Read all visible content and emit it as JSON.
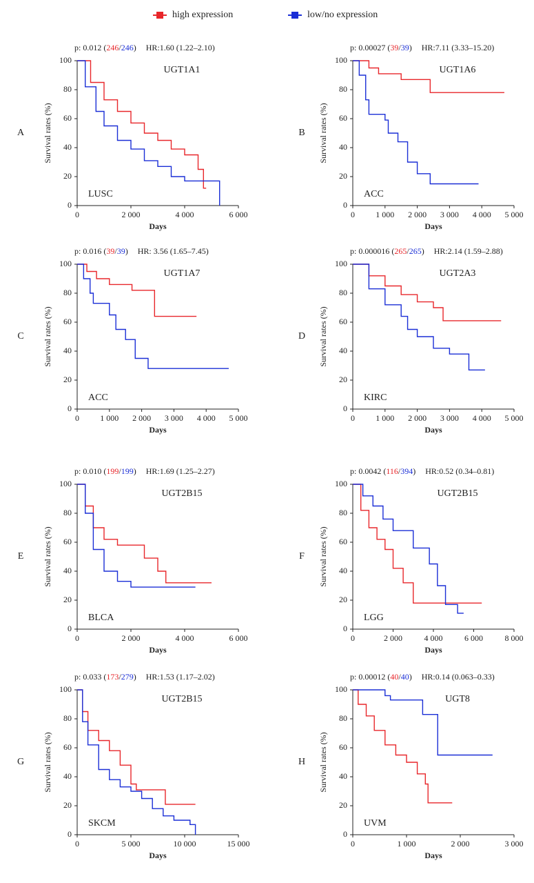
{
  "chart_data": [
    {
      "type": "line",
      "step": "post",
      "panel": "A",
      "gene": "UGT1A1",
      "cancer": "LUSC",
      "annotation": [
        {
          "text": "p: 0.012 ("
        },
        {
          "text": "246",
          "color": "#e8262a"
        },
        {
          "text": "/"
        },
        {
          "text": "246",
          "color": "#1a2ed6"
        },
        {
          "text": ")"
        }
      ],
      "hr": "HR:1.60 (1.22–2.10)",
      "xlabel": "Days",
      "ylabel": "Survival rates (%)",
      "xlim": [
        0,
        6000
      ],
      "xticks": [
        0,
        {
          "value": 2000,
          "label": "2 000"
        },
        {
          "value": 4000,
          "label": "4 000"
        },
        {
          "value": 6000,
          "label": "6 000"
        }
      ],
      "ylim": [
        0,
        100
      ],
      "yticks": [
        0,
        20,
        40,
        60,
        80,
        100
      ],
      "series": [
        {
          "name": "high expression",
          "color": "#e8262a",
          "x": [
            0,
            500,
            1000,
            1500,
            2000,
            2500,
            3000,
            3500,
            4000,
            4500,
            4700,
            4800
          ],
          "values": [
            100,
            85,
            73,
            65,
            57,
            50,
            45,
            39,
            35,
            25,
            12,
            12
          ]
        },
        {
          "name": "low/no expression",
          "color": "#1a2ed6",
          "x": [
            0,
            300,
            700,
            1000,
            1500,
            2000,
            2500,
            3000,
            3500,
            4000,
            5300
          ],
          "values": [
            100,
            82,
            65,
            55,
            45,
            39,
            31,
            27,
            20,
            17,
            0
          ]
        }
      ]
    },
    {
      "type": "line",
      "step": "post",
      "panel": "B",
      "gene": "UGT1A6",
      "cancer": "ACC",
      "annotation": [
        {
          "text": "p: 0.00027 ("
        },
        {
          "text": "39",
          "color": "#e8262a"
        },
        {
          "text": "/"
        },
        {
          "text": "39",
          "color": "#1a2ed6"
        },
        {
          "text": ")"
        }
      ],
      "hr": "HR:7.11 (3.33–15.20)",
      "xlabel": "Days",
      "ylabel": "Survival rates (%)",
      "xlim": [
        0,
        5000
      ],
      "xticks": [
        0,
        {
          "value": 1000,
          "label": "1 000"
        },
        {
          "value": 2000,
          "label": "2 000"
        },
        {
          "value": 3000,
          "label": "3 000"
        },
        {
          "value": 4000,
          "label": "4 000"
        },
        {
          "value": 5000,
          "label": "5 000"
        }
      ],
      "ylim": [
        0,
        100
      ],
      "yticks": [
        0,
        20,
        40,
        60,
        80,
        100
      ],
      "series": [
        {
          "name": "high expression",
          "color": "#e8262a",
          "x": [
            0,
            500,
            800,
            1500,
            2400,
            4700
          ],
          "values": [
            100,
            95,
            91,
            87,
            78,
            78
          ]
        },
        {
          "name": "low/no expression",
          "color": "#1a2ed6",
          "x": [
            0,
            200,
            400,
            500,
            1000,
            1100,
            1400,
            1700,
            2000,
            2400,
            3900
          ],
          "values": [
            100,
            90,
            73,
            63,
            59,
            50,
            44,
            30,
            22,
            15,
            15
          ]
        }
      ]
    },
    {
      "type": "line",
      "step": "post",
      "panel": "C",
      "gene": "UGT1A7",
      "cancer": "ACC",
      "annotation": [
        {
          "text": "p: 0.016 ("
        },
        {
          "text": "39",
          "color": "#e8262a"
        },
        {
          "text": "/"
        },
        {
          "text": "39",
          "color": "#1a2ed6"
        },
        {
          "text": ")"
        }
      ],
      "hr": "HR: 3.56 (1.65–7.45)",
      "xlabel": "Days",
      "ylabel": "Survival rates (%)",
      "xlim": [
        0,
        5000
      ],
      "xticks": [
        0,
        {
          "value": 1000,
          "label": "1 000"
        },
        {
          "value": 2000,
          "label": "2 000"
        },
        {
          "value": 3000,
          "label": "3 000"
        },
        {
          "value": 4000,
          "label": "4 000"
        },
        {
          "value": 5000,
          "label": "5 000"
        }
      ],
      "ylim": [
        0,
        100
      ],
      "yticks": [
        0,
        20,
        40,
        60,
        80,
        100
      ],
      "series": [
        {
          "name": "high expression",
          "color": "#e8262a",
          "x": [
            0,
            300,
            600,
            1000,
            1700,
            2400,
            3700
          ],
          "values": [
            100,
            95,
            90,
            86,
            82,
            64,
            64
          ]
        },
        {
          "name": "low/no expression",
          "color": "#1a2ed6",
          "x": [
            0,
            200,
            400,
            500,
            1000,
            1200,
            1500,
            1800,
            2200,
            4700
          ],
          "values": [
            100,
            90,
            80,
            73,
            65,
            55,
            48,
            35,
            28,
            28
          ]
        }
      ]
    },
    {
      "type": "line",
      "step": "post",
      "panel": "D",
      "gene": "UGT2A3",
      "cancer": "KIRC",
      "annotation": [
        {
          "text": "p: 0.000016 ("
        },
        {
          "text": "265",
          "color": "#e8262a"
        },
        {
          "text": "/"
        },
        {
          "text": "265",
          "color": "#1a2ed6"
        },
        {
          "text": ")"
        }
      ],
      "hr": "HR:2.14 (1.59–2.88)",
      "xlabel": "Days",
      "ylabel": "Survival rates (%)",
      "xlim": [
        0,
        5000
      ],
      "xticks": [
        0,
        {
          "value": 1000,
          "label": "1 000"
        },
        {
          "value": 2000,
          "label": "2 000"
        },
        {
          "value": 3000,
          "label": "3 000"
        },
        {
          "value": 4000,
          "label": "4 000"
        },
        {
          "value": 5000,
          "label": "5 000"
        }
      ],
      "ylim": [
        0,
        100
      ],
      "yticks": [
        0,
        20,
        40,
        60,
        80,
        100
      ],
      "series": [
        {
          "name": "high expression",
          "color": "#e8262a",
          "x": [
            0,
            500,
            1000,
            1500,
            2000,
            2500,
            2800,
            4600
          ],
          "values": [
            100,
            92,
            85,
            79,
            74,
            70,
            61,
            61
          ]
        },
        {
          "name": "low/no expression",
          "color": "#1a2ed6",
          "x": [
            0,
            500,
            1000,
            1500,
            1700,
            2000,
            2500,
            3000,
            3600,
            4100
          ],
          "values": [
            100,
            83,
            72,
            64,
            55,
            50,
            42,
            38,
            27,
            27
          ]
        }
      ]
    },
    {
      "type": "line",
      "step": "post",
      "panel": "E",
      "gene": "UGT2B15",
      "cancer": "BLCA",
      "annotation": [
        {
          "text": "p: 0.010 ("
        },
        {
          "text": "199",
          "color": "#e8262a"
        },
        {
          "text": "/"
        },
        {
          "text": "199",
          "color": "#1a2ed6"
        },
        {
          "text": ")"
        }
      ],
      "hr": "HR:1.69 (1.25–2.27)",
      "xlabel": "Days",
      "ylabel": "Survival rates (%)",
      "xlim": [
        0,
        6000
      ],
      "xticks": [
        0,
        {
          "value": 2000,
          "label": "2 000"
        },
        {
          "value": 4000,
          "label": "4 000"
        },
        {
          "value": 6000,
          "label": "6 000"
        }
      ],
      "ylim": [
        0,
        100
      ],
      "yticks": [
        0,
        20,
        40,
        60,
        80,
        100
      ],
      "series": [
        {
          "name": "high expression",
          "color": "#e8262a",
          "x": [
            0,
            300,
            600,
            1000,
            1500,
            2500,
            3000,
            3300,
            5000
          ],
          "values": [
            100,
            85,
            70,
            62,
            58,
            49,
            40,
            32,
            32
          ]
        },
        {
          "name": "low/no expression",
          "color": "#1a2ed6",
          "x": [
            0,
            300,
            600,
            1000,
            1500,
            2000,
            4400
          ],
          "values": [
            100,
            80,
            55,
            40,
            33,
            29,
            29
          ]
        }
      ]
    },
    {
      "type": "line",
      "step": "post",
      "panel": "F",
      "gene": "UGT2B15",
      "cancer": "LGG",
      "annotation": [
        {
          "text": "p: 0.0042 ("
        },
        {
          "text": "116",
          "color": "#e8262a"
        },
        {
          "text": "/"
        },
        {
          "text": "394",
          "color": "#1a2ed6"
        },
        {
          "text": ")"
        }
      ],
      "hr": "HR:0.52 (0.34–0.81)",
      "xlabel": "Days",
      "ylabel": "Survival rates (%)",
      "xlim": [
        0,
        8000
      ],
      "xticks": [
        0,
        {
          "value": 2000,
          "label": "2 000"
        },
        {
          "value": 4000,
          "label": "4 000"
        },
        {
          "value": 6000,
          "label": "6 000"
        },
        {
          "value": 8000,
          "label": "8 000"
        }
      ],
      "ylim": [
        0,
        100
      ],
      "yticks": [
        0,
        20,
        40,
        60,
        80,
        100
      ],
      "series": [
        {
          "name": "high expression",
          "color": "#e8262a",
          "x": [
            0,
            400,
            800,
            1200,
            1600,
            2000,
            2500,
            3000,
            6400
          ],
          "values": [
            100,
            82,
            70,
            62,
            55,
            42,
            32,
            18,
            18
          ]
        },
        {
          "name": "low/no expression",
          "color": "#1a2ed6",
          "x": [
            0,
            500,
            1000,
            1500,
            2000,
            3000,
            3800,
            4200,
            4600,
            5200,
            5500
          ],
          "values": [
            100,
            92,
            85,
            76,
            68,
            56,
            45,
            30,
            17,
            11,
            11
          ]
        }
      ]
    },
    {
      "type": "line",
      "step": "post",
      "panel": "G",
      "gene": "UGT2B15",
      "cancer": "SKCM",
      "annotation": [
        {
          "text": "p: 0.033 ("
        },
        {
          "text": "173",
          "color": "#e8262a"
        },
        {
          "text": "/"
        },
        {
          "text": "279",
          "color": "#1a2ed6"
        },
        {
          "text": ")"
        }
      ],
      "hr": "HR:1.53 (1.17–2.02)",
      "xlabel": "Days",
      "ylabel": "Survival rates (%)",
      "xlim": [
        0,
        15000
      ],
      "xticks": [
        0,
        {
          "value": 5000,
          "label": "5 000"
        },
        {
          "value": 10000,
          "label": "10 000"
        },
        {
          "value": 15000,
          "label": "15 000"
        }
      ],
      "ylim": [
        0,
        100
      ],
      "yticks": [
        0,
        20,
        40,
        60,
        80,
        100
      ],
      "series": [
        {
          "name": "high expression",
          "color": "#e8262a",
          "x": [
            0,
            500,
            1000,
            2000,
            3000,
            4000,
            5000,
            5500,
            8200,
            11000
          ],
          "values": [
            100,
            85,
            72,
            65,
            58,
            48,
            35,
            31,
            21,
            21
          ]
        },
        {
          "name": "low/no expression",
          "color": "#1a2ed6",
          "x": [
            0,
            500,
            1000,
            2000,
            3000,
            4000,
            5000,
            6000,
            7000,
            8000,
            9000,
            10500,
            11000
          ],
          "values": [
            100,
            78,
            62,
            45,
            38,
            33,
            30,
            25,
            18,
            13,
            10,
            7,
            0
          ]
        }
      ]
    },
    {
      "type": "line",
      "step": "post",
      "panel": "H",
      "gene": "UGT8",
      "cancer": "UVM",
      "annotation": [
        {
          "text": "p: 0.00012 ("
        },
        {
          "text": "40",
          "color": "#e8262a"
        },
        {
          "text": "/"
        },
        {
          "text": "40",
          "color": "#1a2ed6"
        },
        {
          "text": ")"
        }
      ],
      "hr": "HR:0.14 (0.063–0.33)",
      "xlabel": "Days",
      "ylabel": "Survival rates (%)",
      "xlim": [
        0,
        3000
      ],
      "xticks": [
        0,
        {
          "value": 1000,
          "label": "1 000"
        },
        {
          "value": 2000,
          "label": "2 000"
        },
        {
          "value": 3000,
          "label": "3 000"
        }
      ],
      "ylim": [
        0,
        100
      ],
      "yticks": [
        0,
        20,
        40,
        60,
        80,
        100
      ],
      "series": [
        {
          "name": "high expression",
          "color": "#e8262a",
          "x": [
            0,
            100,
            250,
            400,
            600,
            800,
            1000,
            1200,
            1350,
            1400,
            1850
          ],
          "values": [
            100,
            90,
            82,
            72,
            62,
            55,
            50,
            42,
            35,
            22,
            22
          ]
        },
        {
          "name": "low/no expression",
          "color": "#1a2ed6",
          "x": [
            0,
            500,
            600,
            700,
            1300,
            1580,
            2600
          ],
          "values": [
            100,
            100,
            96,
            93,
            83,
            55,
            55
          ]
        }
      ]
    }
  ]
}
